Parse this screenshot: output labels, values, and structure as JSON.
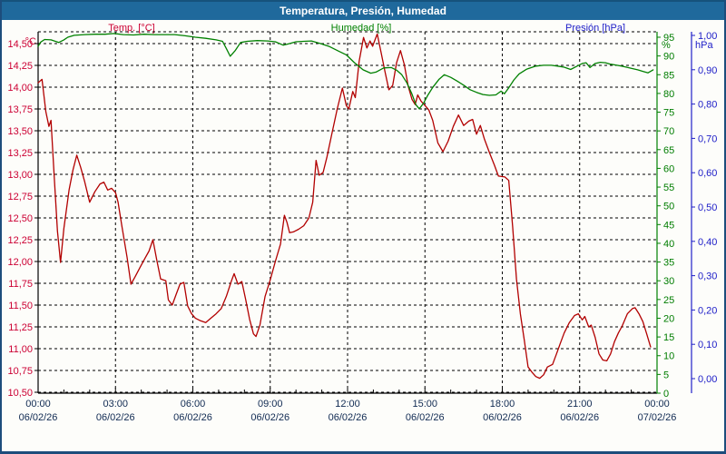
{
  "title_bar": {
    "title": "Temperatura, Presión, Humedad"
  },
  "legend": {
    "temp_label": "Temp. [°C]",
    "humidity_label": "Humedad [%]",
    "pressure_label": "Presión [hPa]"
  },
  "colors": {
    "titlebar_bg": "#1f699c",
    "frame_border": "#1d4d7c",
    "temp_text": "#cc0033",
    "temp_line": "#b20000",
    "humidity_text": "#007d00",
    "humidity_line": "#008000",
    "pressure_text": "#2020c8",
    "x_label_text": "#102a52",
    "grid": "#000000"
  },
  "axis_units": {
    "temp": "°C",
    "humidity": "%",
    "pressure": "hPa"
  },
  "chart_data": {
    "type": "line",
    "title": "Temperatura, Presión, Humedad",
    "grid": {
      "style": "dashed",
      "h_lines": "every 0.25 °C",
      "v_lines": "every 3 h"
    },
    "x_axis": {
      "range_hours": [
        0,
        24
      ],
      "major_tick_hours": 3,
      "minor_tick_hours": 1,
      "tick_labels": [
        {
          "time": "00:00",
          "date": "06/02/26"
        },
        {
          "time": "03:00",
          "date": "06/02/26"
        },
        {
          "time": "06:00",
          "date": "06/02/26"
        },
        {
          "time": "09:00",
          "date": "06/02/26"
        },
        {
          "time": "12:00",
          "date": "06/02/26"
        },
        {
          "time": "15:00",
          "date": "06/02/26"
        },
        {
          "time": "18:00",
          "date": "06/02/26"
        },
        {
          "time": "21:00",
          "date": "06/02/26"
        },
        {
          "time": "00:00",
          "date": "07/02/26"
        }
      ]
    },
    "y_axes": {
      "temp": {
        "unit": "°C",
        "min": 10.5,
        "max": 14.5,
        "step": 0.25,
        "tick_labels": [
          "14,50",
          "14,25",
          "14,00",
          "13,75",
          "13,50",
          "13,25",
          "13,00",
          "12,75",
          "12,50",
          "12,25",
          "12,00",
          "11,75",
          "11,50",
          "11,25",
          "11,00",
          "10,75",
          "10,50"
        ]
      },
      "humidity": {
        "unit": "%",
        "min": 0,
        "max": 95,
        "step": 5,
        "tick_labels": [
          "95",
          "90",
          "85",
          "80",
          "75",
          "70",
          "65",
          "60",
          "55",
          "50",
          "45",
          "40",
          "35",
          "30",
          "25",
          "20",
          "15",
          "10",
          "5",
          "0"
        ]
      },
      "pressure": {
        "unit": "hPa",
        "min": 0.0,
        "max": 1.0,
        "step": 0.1,
        "tick_labels": [
          "1,00",
          "0,90",
          "0,80",
          "0,70",
          "0,60",
          "0,50",
          "0,40",
          "0,30",
          "0,20",
          "0,10",
          "0,00"
        ]
      }
    },
    "series": [
      {
        "name": "Temp. [°C]",
        "axis": "temp",
        "color": "#b20000",
        "points": [
          [
            0,
            14.05
          ],
          [
            0.15,
            14.09
          ],
          [
            0.3,
            13.72
          ],
          [
            0.42,
            13.55
          ],
          [
            0.5,
            13.62
          ],
          [
            0.62,
            13.0
          ],
          [
            0.75,
            12.35
          ],
          [
            0.87,
            11.99
          ],
          [
            1.0,
            12.38
          ],
          [
            1.2,
            12.82
          ],
          [
            1.35,
            13.05
          ],
          [
            1.5,
            13.22
          ],
          [
            1.65,
            13.08
          ],
          [
            1.8,
            12.92
          ],
          [
            2.0,
            12.68
          ],
          [
            2.2,
            12.8
          ],
          [
            2.4,
            12.89
          ],
          [
            2.55,
            12.91
          ],
          [
            2.7,
            12.82
          ],
          [
            2.85,
            12.84
          ],
          [
            3.0,
            12.79
          ],
          [
            3.1,
            12.68
          ],
          [
            3.25,
            12.4
          ],
          [
            3.45,
            12.05
          ],
          [
            3.6,
            11.74
          ],
          [
            3.75,
            11.82
          ],
          [
            3.95,
            11.93
          ],
          [
            4.15,
            12.04
          ],
          [
            4.3,
            12.12
          ],
          [
            4.45,
            12.25
          ],
          [
            4.6,
            12.02
          ],
          [
            4.75,
            11.8
          ],
          [
            4.95,
            11.78
          ],
          [
            5.05,
            11.56
          ],
          [
            5.2,
            11.5
          ],
          [
            5.35,
            11.62
          ],
          [
            5.5,
            11.74
          ],
          [
            5.65,
            11.76
          ],
          [
            5.8,
            11.49
          ],
          [
            5.95,
            11.4
          ],
          [
            6.1,
            11.35
          ],
          [
            6.3,
            11.32
          ],
          [
            6.5,
            11.3
          ],
          [
            6.7,
            11.35
          ],
          [
            6.9,
            11.4
          ],
          [
            7.1,
            11.46
          ],
          [
            7.3,
            11.6
          ],
          [
            7.5,
            11.78
          ],
          [
            7.6,
            11.86
          ],
          [
            7.75,
            11.74
          ],
          [
            7.9,
            11.77
          ],
          [
            8.05,
            11.56
          ],
          [
            8.2,
            11.34
          ],
          [
            8.35,
            11.17
          ],
          [
            8.45,
            11.14
          ],
          [
            8.6,
            11.27
          ],
          [
            8.8,
            11.6
          ],
          [
            9.0,
            11.79
          ],
          [
            9.2,
            12.0
          ],
          [
            9.4,
            12.2
          ],
          [
            9.55,
            12.53
          ],
          [
            9.65,
            12.45
          ],
          [
            9.75,
            12.33
          ],
          [
            9.9,
            12.34
          ],
          [
            10.1,
            12.37
          ],
          [
            10.3,
            12.41
          ],
          [
            10.5,
            12.5
          ],
          [
            10.65,
            12.68
          ],
          [
            10.78,
            13.16
          ],
          [
            10.9,
            12.99
          ],
          [
            11.05,
            13.02
          ],
          [
            11.2,
            13.2
          ],
          [
            11.4,
            13.48
          ],
          [
            11.6,
            13.75
          ],
          [
            11.8,
            13.99
          ],
          [
            11.95,
            13.79
          ],
          [
            12.05,
            13.75
          ],
          [
            12.2,
            13.95
          ],
          [
            12.3,
            13.88
          ],
          [
            12.45,
            14.3
          ],
          [
            12.62,
            14.57
          ],
          [
            12.75,
            14.45
          ],
          [
            12.87,
            14.53
          ],
          [
            12.97,
            14.47
          ],
          [
            13.15,
            14.61
          ],
          [
            13.3,
            14.4
          ],
          [
            13.45,
            14.18
          ],
          [
            13.6,
            13.97
          ],
          [
            13.75,
            14.02
          ],
          [
            13.9,
            14.28
          ],
          [
            14.05,
            14.42
          ],
          [
            14.2,
            14.26
          ],
          [
            14.35,
            14.01
          ],
          [
            14.5,
            13.86
          ],
          [
            14.62,
            13.8
          ],
          [
            14.72,
            13.91
          ],
          [
            14.85,
            13.84
          ],
          [
            15.0,
            13.79
          ],
          [
            15.15,
            13.74
          ],
          [
            15.3,
            13.62
          ],
          [
            15.5,
            13.36
          ],
          [
            15.7,
            13.26
          ],
          [
            15.9,
            13.38
          ],
          [
            16.1,
            13.55
          ],
          [
            16.3,
            13.68
          ],
          [
            16.5,
            13.56
          ],
          [
            16.7,
            13.61
          ],
          [
            16.85,
            13.63
          ],
          [
            17.0,
            13.46
          ],
          [
            17.15,
            13.56
          ],
          [
            17.3,
            13.41
          ],
          [
            17.5,
            13.25
          ],
          [
            17.7,
            13.1
          ],
          [
            17.85,
            12.98
          ],
          [
            18.1,
            12.97
          ],
          [
            18.25,
            12.93
          ],
          [
            18.4,
            12.4
          ],
          [
            18.55,
            11.8
          ],
          [
            18.7,
            11.4
          ],
          [
            18.85,
            11.1
          ],
          [
            19.0,
            10.79
          ],
          [
            19.15,
            10.73
          ],
          [
            19.3,
            10.68
          ],
          [
            19.45,
            10.66
          ],
          [
            19.6,
            10.7
          ],
          [
            19.75,
            10.79
          ],
          [
            19.95,
            10.82
          ],
          [
            20.1,
            10.94
          ],
          [
            20.25,
            11.06
          ],
          [
            20.4,
            11.18
          ],
          [
            20.6,
            11.3
          ],
          [
            20.8,
            11.38
          ],
          [
            20.95,
            11.4
          ],
          [
            21.1,
            11.33
          ],
          [
            21.2,
            11.37
          ],
          [
            21.35,
            11.25
          ],
          [
            21.45,
            11.27
          ],
          [
            21.6,
            11.13
          ],
          [
            21.75,
            10.94
          ],
          [
            21.9,
            10.87
          ],
          [
            22.05,
            10.86
          ],
          [
            22.2,
            10.94
          ],
          [
            22.35,
            11.08
          ],
          [
            22.5,
            11.18
          ],
          [
            22.65,
            11.26
          ],
          [
            22.85,
            11.4
          ],
          [
            23.05,
            11.46
          ],
          [
            23.15,
            11.47
          ],
          [
            23.3,
            11.4
          ],
          [
            23.45,
            11.31
          ],
          [
            23.6,
            11.17
          ],
          [
            23.75,
            11.02
          ]
        ]
      },
      {
        "name": "Humedad [%]",
        "axis": "humidity",
        "color": "#008000",
        "points": [
          [
            0,
            92.6
          ],
          [
            0.1,
            93.7
          ],
          [
            0.25,
            94.4
          ],
          [
            0.5,
            94.3
          ],
          [
            0.8,
            93.6
          ],
          [
            1.0,
            94.3
          ],
          [
            1.15,
            95.0
          ],
          [
            1.4,
            95.5
          ],
          [
            1.8,
            95.7
          ],
          [
            2.2,
            95.8
          ],
          [
            2.6,
            95.8
          ],
          [
            2.95,
            96.0
          ],
          [
            3.3,
            95.7
          ],
          [
            3.7,
            95.6
          ],
          [
            4.1,
            95.8
          ],
          [
            4.5,
            95.7
          ],
          [
            4.9,
            95.7
          ],
          [
            5.3,
            95.7
          ],
          [
            5.7,
            95.4
          ],
          [
            6.1,
            95.0
          ],
          [
            6.5,
            94.7
          ],
          [
            6.9,
            94.3
          ],
          [
            7.15,
            93.9
          ],
          [
            7.3,
            92.0
          ],
          [
            7.45,
            89.9
          ],
          [
            7.65,
            91.5
          ],
          [
            7.85,
            93.6
          ],
          [
            8.1,
            93.9
          ],
          [
            8.5,
            94.1
          ],
          [
            8.9,
            94.0
          ],
          [
            9.2,
            93.8
          ],
          [
            9.5,
            92.9
          ],
          [
            9.7,
            93.2
          ],
          [
            10.0,
            93.8
          ],
          [
            10.3,
            93.9
          ],
          [
            10.6,
            94.0
          ],
          [
            10.95,
            93.3
          ],
          [
            11.3,
            92.5
          ],
          [
            11.65,
            91.3
          ],
          [
            11.95,
            90.3
          ],
          [
            12.25,
            88.3
          ],
          [
            12.6,
            86.3
          ],
          [
            12.9,
            85.4
          ],
          [
            13.1,
            85.7
          ],
          [
            13.4,
            86.8
          ],
          [
            13.7,
            86.9
          ],
          [
            13.9,
            86.2
          ],
          [
            14.1,
            85.0
          ],
          [
            14.3,
            82.8
          ],
          [
            14.5,
            79.8
          ],
          [
            14.65,
            77.0
          ],
          [
            14.78,
            75.9
          ],
          [
            14.95,
            77.4
          ],
          [
            15.1,
            79.4
          ],
          [
            15.3,
            81.6
          ],
          [
            15.55,
            83.8
          ],
          [
            15.75,
            85.0
          ],
          [
            16.0,
            84.3
          ],
          [
            16.25,
            83.3
          ],
          [
            16.5,
            82.2
          ],
          [
            16.75,
            81.0
          ],
          [
            17.0,
            80.3
          ],
          [
            17.25,
            79.7
          ],
          [
            17.5,
            79.5
          ],
          [
            17.75,
            79.6
          ],
          [
            17.95,
            80.6
          ],
          [
            18.08,
            79.9
          ],
          [
            18.25,
            81.5
          ],
          [
            18.45,
            83.6
          ],
          [
            18.65,
            85.2
          ],
          [
            18.95,
            86.5
          ],
          [
            19.3,
            87.3
          ],
          [
            19.6,
            87.5
          ],
          [
            19.9,
            87.5
          ],
          [
            20.15,
            87.3
          ],
          [
            20.4,
            87.0
          ],
          [
            20.65,
            86.4
          ],
          [
            20.9,
            87.3
          ],
          [
            21.1,
            88.0
          ],
          [
            21.25,
            88.2
          ],
          [
            21.4,
            86.9
          ],
          [
            21.6,
            88.0
          ],
          [
            21.8,
            88.3
          ],
          [
            22.0,
            88.2
          ],
          [
            22.2,
            87.8
          ],
          [
            22.45,
            87.5
          ],
          [
            22.7,
            87.2
          ],
          [
            23.0,
            86.7
          ],
          [
            23.25,
            86.3
          ],
          [
            23.45,
            85.9
          ],
          [
            23.65,
            85.5
          ],
          [
            23.85,
            86.3
          ]
        ]
      },
      {
        "name": "Presión [hPa]",
        "axis": "pressure",
        "color": "#2020c8",
        "points": []
      }
    ]
  }
}
